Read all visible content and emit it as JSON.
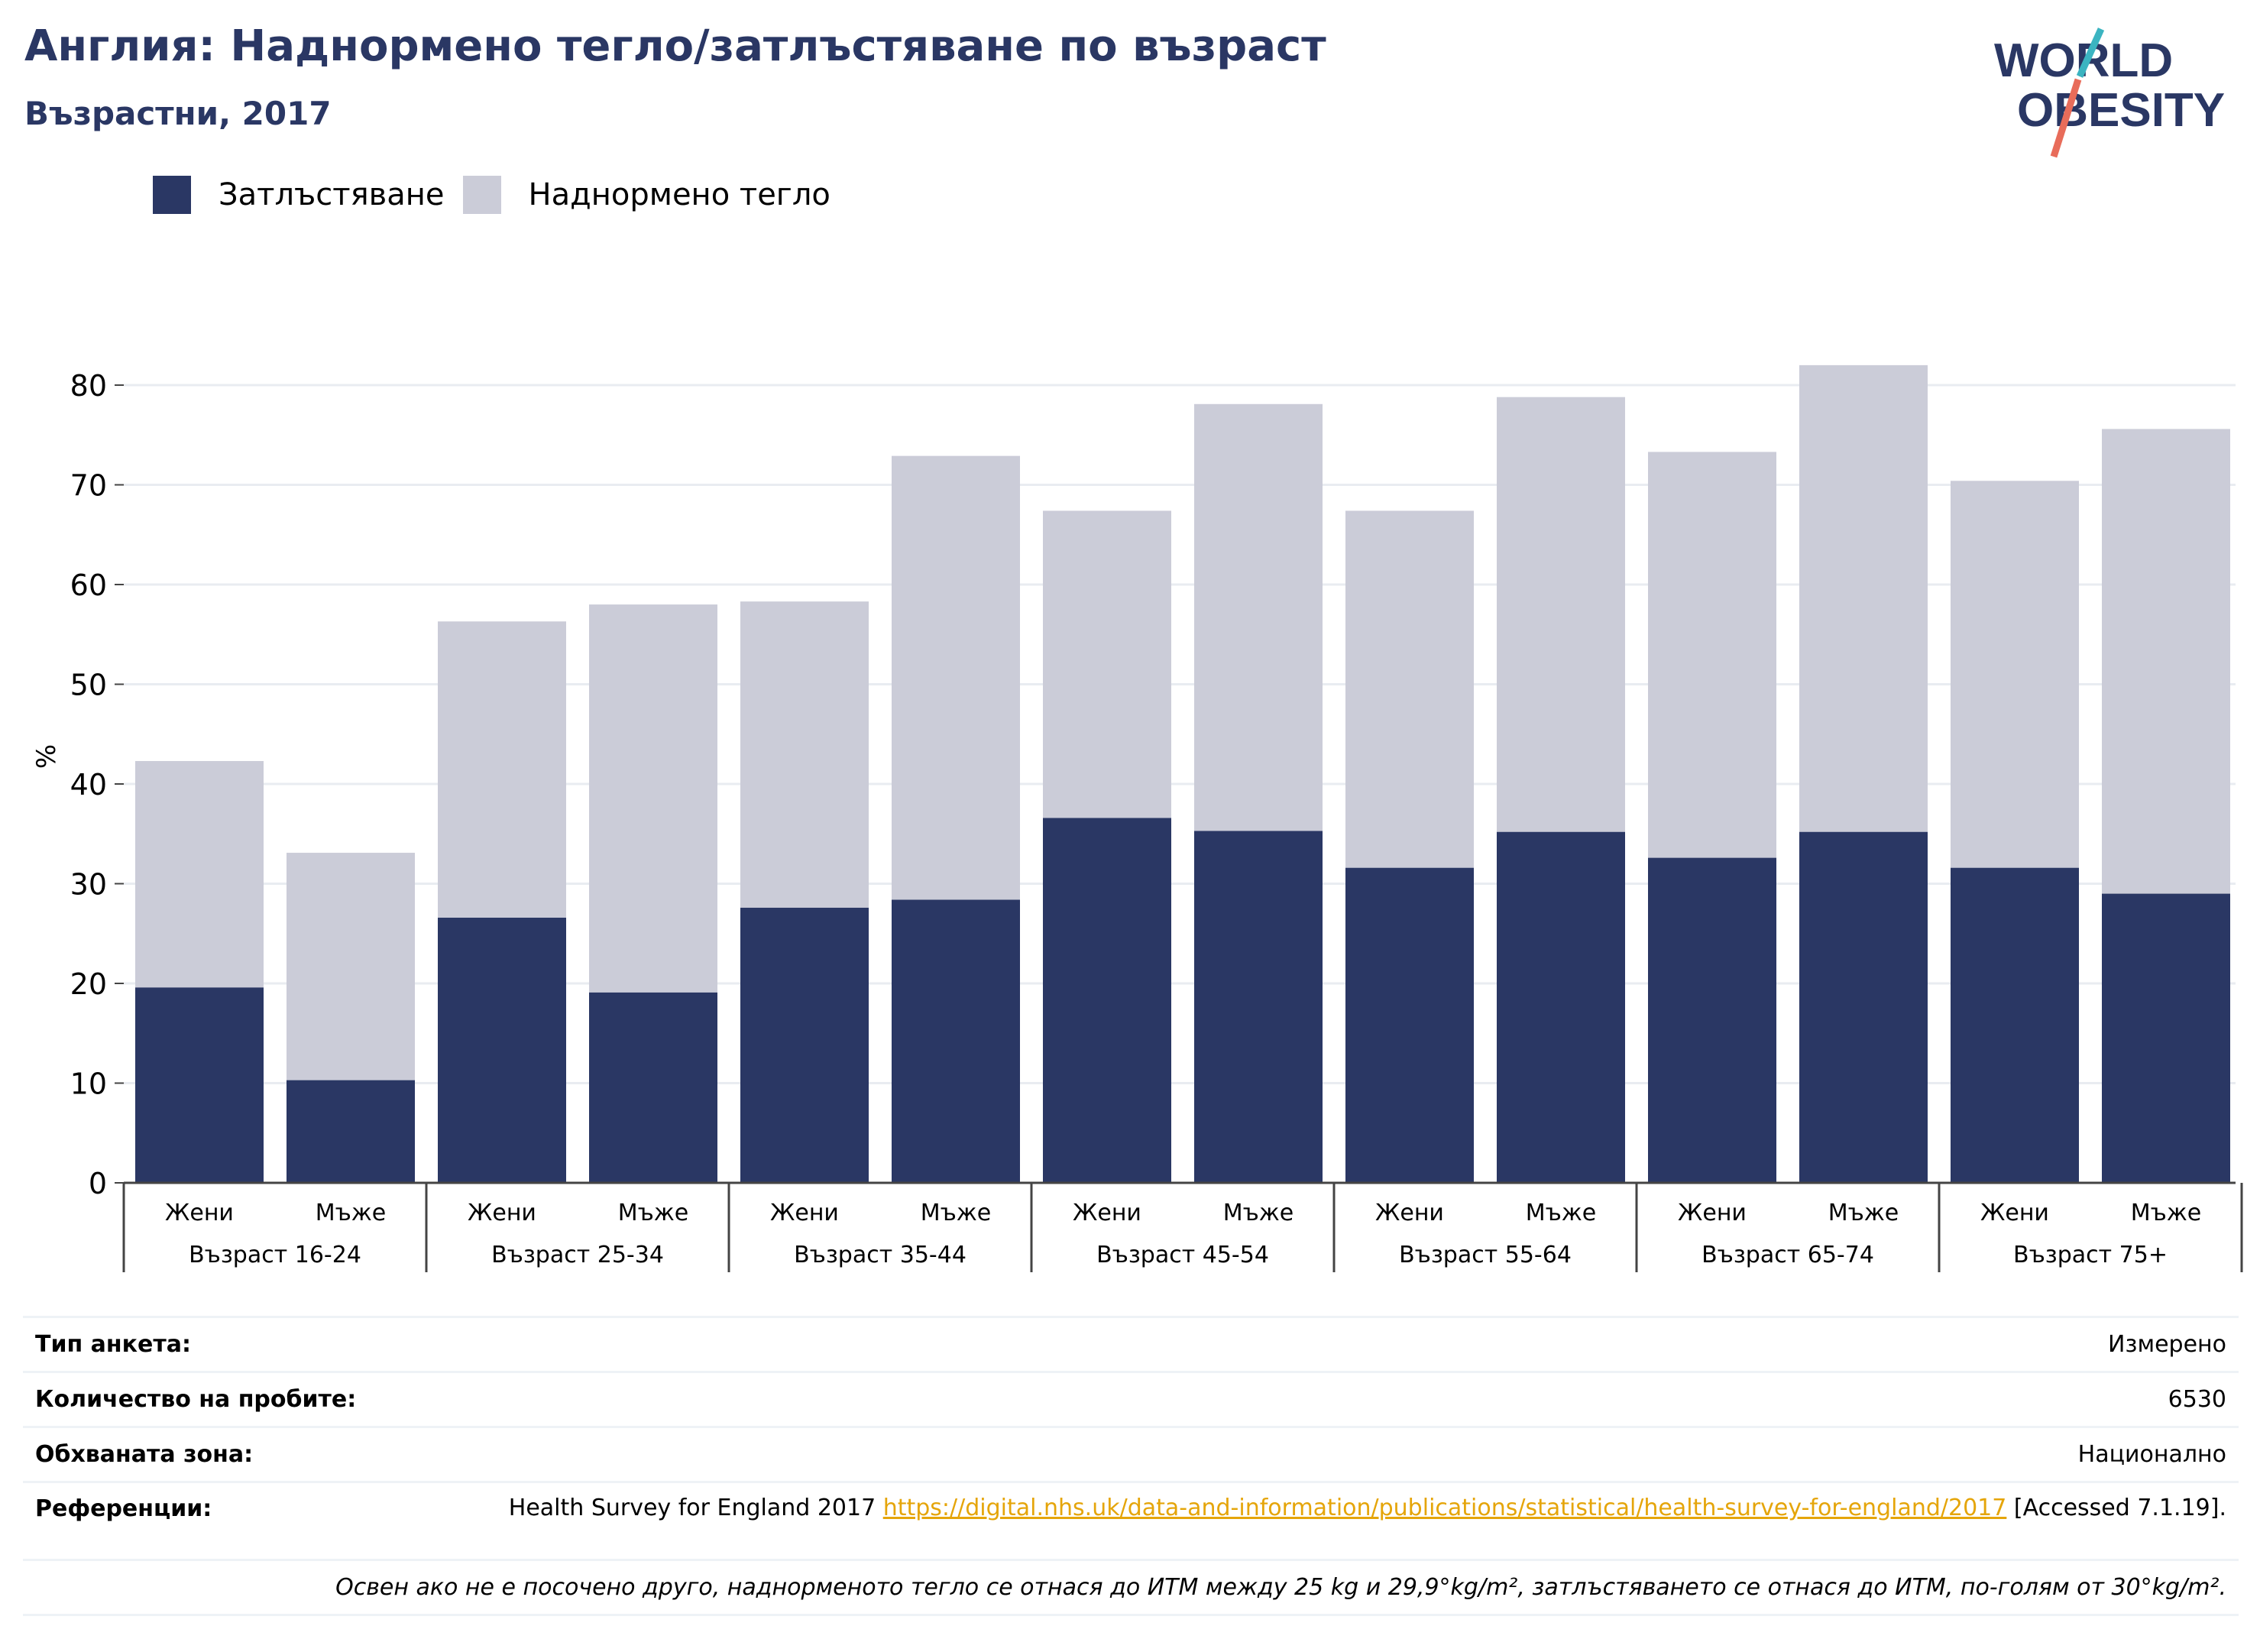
{
  "title": "Англия: Наднормено тегло/затлъстяване по възраст",
  "subtitle": "Възрастни, 2017",
  "logo": {
    "line1": "WORLD",
    "line2": "OBESITY",
    "accent_colors": [
      "#3bb4c1",
      "#e86c5a"
    ],
    "text_color": "#2a3764"
  },
  "chart_data": {
    "type": "bar",
    "stacked": true,
    "ylabel": "%",
    "ylim": [
      0,
      85
    ],
    "yticks": [
      0,
      10,
      20,
      30,
      40,
      50,
      60,
      70,
      80
    ],
    "grid": true,
    "legend_position": "top-left",
    "groups": [
      "Възраст 16-24",
      "Възраст 25-34",
      "Възраст 35-44",
      "Възраст 45-54",
      "Възраст 55-64",
      "Възраст 65-74",
      "Възраст 75+"
    ],
    "categories": [
      "Жени",
      "Мъже",
      "Жени",
      "Мъже",
      "Жени",
      "Мъже",
      "Жени",
      "Мъже",
      "Жени",
      "Мъже",
      "Жени",
      "Мъже",
      "Жени",
      "Мъже"
    ],
    "series": [
      {
        "name": "Затлъстяване",
        "color": "#2a3764",
        "values": [
          19.6,
          10.3,
          26.6,
          19.1,
          27.6,
          28.4,
          36.6,
          35.3,
          31.6,
          35.2,
          32.6,
          35.2,
          31.6,
          29.0
        ]
      },
      {
        "name": "Наднормено тегло",
        "color": "#cbccd8",
        "values": [
          22.7,
          22.8,
          29.7,
          38.9,
          30.7,
          44.5,
          30.8,
          42.8,
          35.8,
          43.6,
          40.7,
          46.8,
          38.8,
          46.6
        ]
      }
    ]
  },
  "meta": {
    "survey_type_label": "Тип анкета:",
    "survey_type_value": "Измерено",
    "sample_size_label": "Количество на пробите:",
    "sample_size_value": "6530",
    "area_label": "Обхваната зона:",
    "area_value": "Национално",
    "references_label": "Референции:",
    "references_text": "Health Survey for England 2017",
    "references_link": "https://digital.nhs.uk/data-and-information/publications/statistical/health-survey-for-england/2017",
    "references_accessed": "[Accessed 7.1.19].",
    "note": "Освен ако не е посочено друго, наднорменото тегло се отнася до ИТМ между 25 kg и 29,9°kg/m², затлъстяването се отнася до ИТМ, по-голям от 30°kg/m²."
  }
}
